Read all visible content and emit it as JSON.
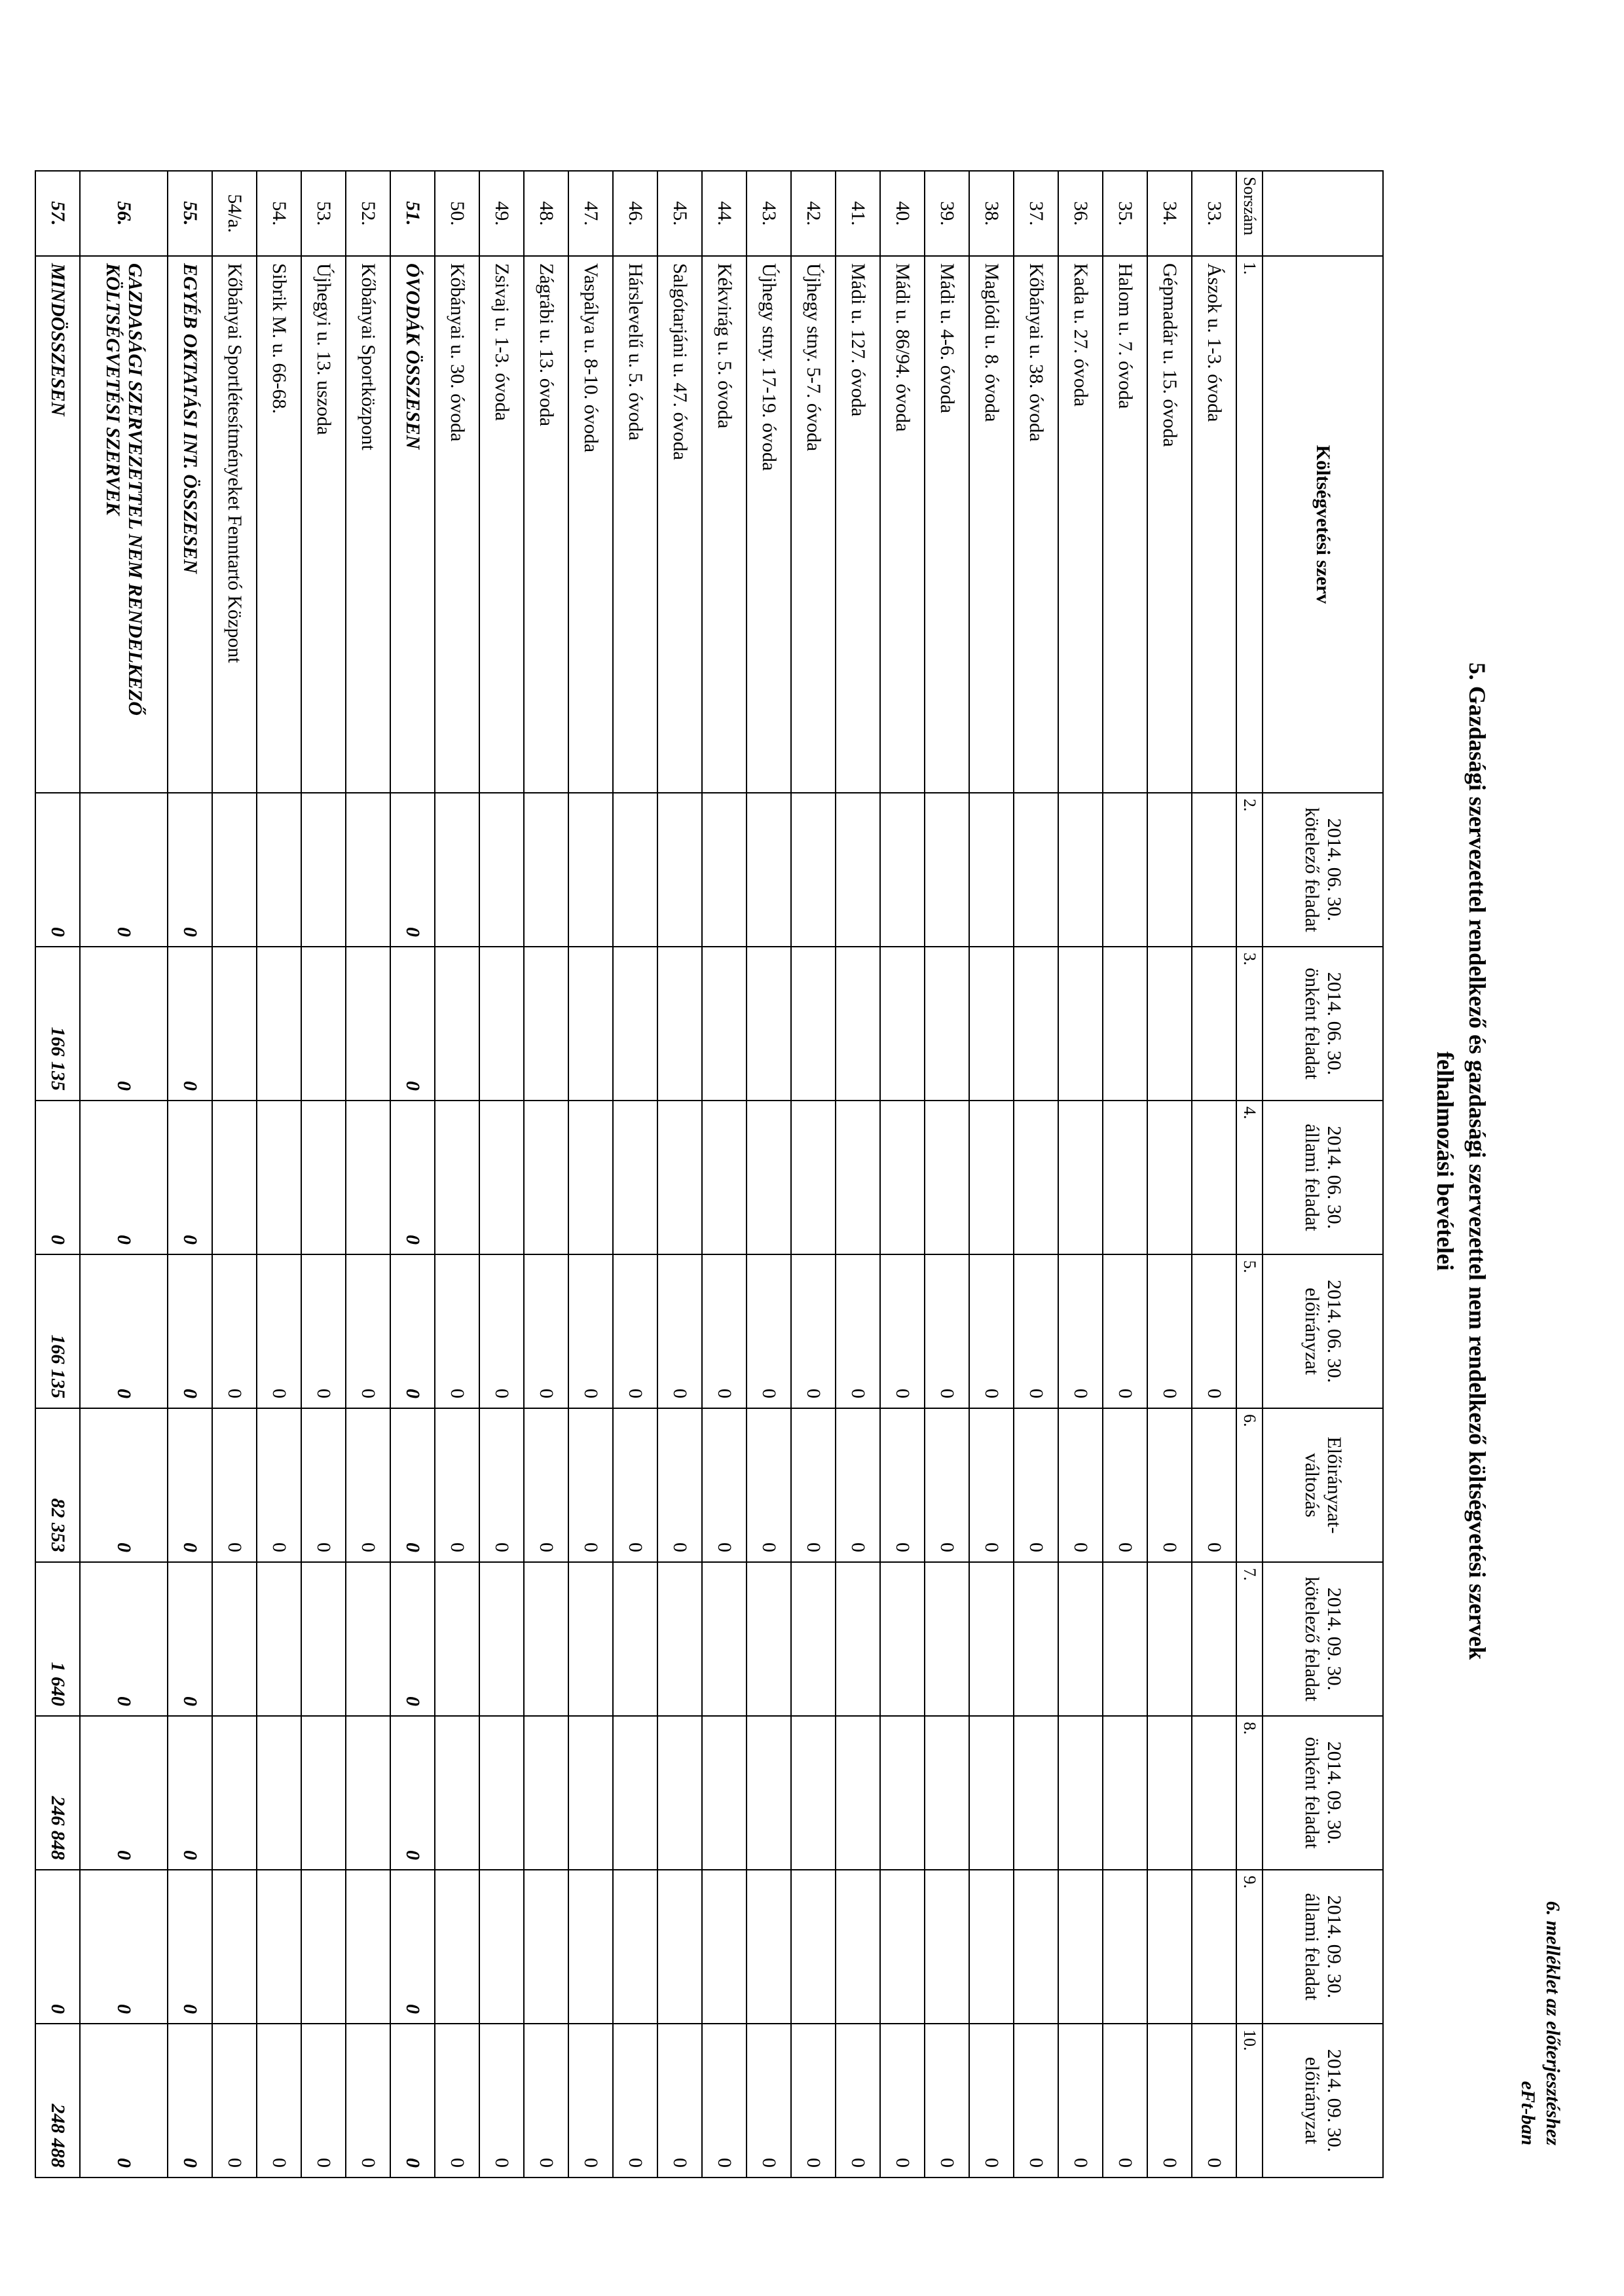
{
  "annex": {
    "line1": "6. melléklet az előterjesztéshez",
    "line2": "eFt-ban"
  },
  "title": {
    "line1": "5. Gazdasági szervezettel rendelkező és gazdasági szervezettel nem rendelkező költségvetési szervek",
    "line2": "felhalmozási bevételei"
  },
  "colnums": [
    "Sorszám",
    "1.",
    "2.",
    "3.",
    "4.",
    "5.",
    "6.",
    "7.",
    "8.",
    "9.",
    "10."
  ],
  "headers": {
    "name": "Költségvetési szerv",
    "c2": "2014. 06. 30. kötelező feladat",
    "c3": "2014. 06. 30. önként feladat",
    "c4": "2014. 06. 30. állami feladat",
    "c5": "2014. 06. 30. előirányzat",
    "c6": "Előirányzat-változás",
    "c7": "2014. 09. 30. kötelező feladat",
    "c8": "2014. 09. 30. önként feladat",
    "c9": "2014. 09. 30. állami feladat",
    "c10": "2014. 09. 30. előirányzat"
  },
  "rows": [
    {
      "sor": "33.",
      "name": "Ászok u. 1-3. óvoda",
      "c2": "",
      "c3": "",
      "c4": "",
      "c5": "0",
      "c6": "0",
      "c7": "",
      "c8": "",
      "c9": "",
      "c10": "0",
      "style": ""
    },
    {
      "sor": "34.",
      "name": "Gépmadár u. 15. óvoda",
      "c2": "",
      "c3": "",
      "c4": "",
      "c5": "0",
      "c6": "0",
      "c7": "",
      "c8": "",
      "c9": "",
      "c10": "0",
      "style": ""
    },
    {
      "sor": "35.",
      "name": "Halom u. 7. óvoda",
      "c2": "",
      "c3": "",
      "c4": "",
      "c5": "0",
      "c6": "0",
      "c7": "",
      "c8": "",
      "c9": "",
      "c10": "0",
      "style": ""
    },
    {
      "sor": "36.",
      "name": "Kada u. 27. óvoda",
      "c2": "",
      "c3": "",
      "c4": "",
      "c5": "0",
      "c6": "0",
      "c7": "",
      "c8": "",
      "c9": "",
      "c10": "0",
      "style": ""
    },
    {
      "sor": "37.",
      "name": "Kőbányai u. 38. óvoda",
      "c2": "",
      "c3": "",
      "c4": "",
      "c5": "0",
      "c6": "0",
      "c7": "",
      "c8": "",
      "c9": "",
      "c10": "0",
      "style": ""
    },
    {
      "sor": "38.",
      "name": "Maglódi u. 8. óvoda",
      "c2": "",
      "c3": "",
      "c4": "",
      "c5": "0",
      "c6": "0",
      "c7": "",
      "c8": "",
      "c9": "",
      "c10": "0",
      "style": ""
    },
    {
      "sor": "39.",
      "name": "Mádi u. 4-6. óvoda",
      "c2": "",
      "c3": "",
      "c4": "",
      "c5": "0",
      "c6": "0",
      "c7": "",
      "c8": "",
      "c9": "",
      "c10": "0",
      "style": ""
    },
    {
      "sor": "40.",
      "name": "Mádi u. 86/94. óvoda",
      "c2": "",
      "c3": "",
      "c4": "",
      "c5": "0",
      "c6": "0",
      "c7": "",
      "c8": "",
      "c9": "",
      "c10": "0",
      "style": ""
    },
    {
      "sor": "41.",
      "name": "Mádi u. 127. óvoda",
      "c2": "",
      "c3": "",
      "c4": "",
      "c5": "0",
      "c6": "0",
      "c7": "",
      "c8": "",
      "c9": "",
      "c10": "0",
      "style": ""
    },
    {
      "sor": "42.",
      "name": "Újhegy stny. 5-7. óvoda",
      "c2": "",
      "c3": "",
      "c4": "",
      "c5": "0",
      "c6": "0",
      "c7": "",
      "c8": "",
      "c9": "",
      "c10": "0",
      "style": ""
    },
    {
      "sor": "43.",
      "name": "Újhegy stny. 17-19. óvoda",
      "c2": "",
      "c3": "",
      "c4": "",
      "c5": "0",
      "c6": "0",
      "c7": "",
      "c8": "",
      "c9": "",
      "c10": "0",
      "style": ""
    },
    {
      "sor": "44.",
      "name": "Kékvirág u. 5. óvoda",
      "c2": "",
      "c3": "",
      "c4": "",
      "c5": "0",
      "c6": "0",
      "c7": "",
      "c8": "",
      "c9": "",
      "c10": "0",
      "style": ""
    },
    {
      "sor": "45.",
      "name": "Salgótarjáni u. 47. óvoda",
      "c2": "",
      "c3": "",
      "c4": "",
      "c5": "0",
      "c6": "0",
      "c7": "",
      "c8": "",
      "c9": "",
      "c10": "0",
      "style": ""
    },
    {
      "sor": "46.",
      "name": "Hárslevelű u. 5. óvoda",
      "c2": "",
      "c3": "",
      "c4": "",
      "c5": "0",
      "c6": "0",
      "c7": "",
      "c8": "",
      "c9": "",
      "c10": "0",
      "style": ""
    },
    {
      "sor": "47.",
      "name": "Vaspálya u. 8-10. óvoda",
      "c2": "",
      "c3": "",
      "c4": "",
      "c5": "0",
      "c6": "0",
      "c7": "",
      "c8": "",
      "c9": "",
      "c10": "0",
      "style": ""
    },
    {
      "sor": "48.",
      "name": "Zágrábi u. 13. óvoda",
      "c2": "",
      "c3": "",
      "c4": "",
      "c5": "0",
      "c6": "0",
      "c7": "",
      "c8": "",
      "c9": "",
      "c10": "0",
      "style": ""
    },
    {
      "sor": "49.",
      "name": "Zsivaj u. 1-3. óvoda",
      "c2": "",
      "c3": "",
      "c4": "",
      "c5": "0",
      "c6": "0",
      "c7": "",
      "c8": "",
      "c9": "",
      "c10": "0",
      "style": ""
    },
    {
      "sor": "50.",
      "name": "Kőbányai u. 30. óvoda",
      "c2": "",
      "c3": "",
      "c4": "",
      "c5": "0",
      "c6": "0",
      "c7": "",
      "c8": "",
      "c9": "",
      "c10": "0",
      "style": ""
    },
    {
      "sor": "51.",
      "name": "ÓVODÁK ÖSSZESEN",
      "c2": "0",
      "c3": "0",
      "c4": "0",
      "c5": "0",
      "c6": "0",
      "c7": "0",
      "c8": "0",
      "c9": "0",
      "c10": "0",
      "style": "bolditalic"
    },
    {
      "sor": "52.",
      "name": "Kőbányai Sportközpont",
      "c2": "",
      "c3": "",
      "c4": "",
      "c5": "0",
      "c6": "0",
      "c7": "",
      "c8": "",
      "c9": "",
      "c10": "0",
      "style": ""
    },
    {
      "sor": "53.",
      "name": "Újhegyi u. 13. uszoda",
      "c2": "",
      "c3": "",
      "c4": "",
      "c5": "0",
      "c6": "0",
      "c7": "",
      "c8": "",
      "c9": "",
      "c10": "0",
      "style": ""
    },
    {
      "sor": "54.",
      "name": "Sibrik M. u. 66-68.",
      "c2": "",
      "c3": "",
      "c4": "",
      "c5": "0",
      "c6": "0",
      "c7": "",
      "c8": "",
      "c9": "",
      "c10": "0",
      "style": ""
    },
    {
      "sor": "54/a.",
      "name": "Kőbányai Sportlétesítményeket Fenntartó Központ",
      "c2": "",
      "c3": "",
      "c4": "",
      "c5": "0",
      "c6": "0",
      "c7": "",
      "c8": "",
      "c9": "",
      "c10": "0",
      "style": ""
    },
    {
      "sor": "55.",
      "name": "EGYÉB OKTATÁSI INT. ÖSSZESEN",
      "c2": "0",
      "c3": "0",
      "c4": "0",
      "c5": "0",
      "c6": "0",
      "c7": "0",
      "c8": "0",
      "c9": "0",
      "c10": "0",
      "style": "bolditalic"
    },
    {
      "sor": "56.",
      "name": "GAZDASÁGI SZERVEZETTEL NEM RENDELKEZŐ KÖLTSÉGVETÉSI SZERVEK",
      "c2": "0",
      "c3": "0",
      "c4": "0",
      "c5": "0",
      "c6": "0",
      "c7": "0",
      "c8": "0",
      "c9": "0",
      "c10": "0",
      "style": "bolditalic tall"
    },
    {
      "sor": "57.",
      "name": "MINDÖSSZESEN",
      "c2": "0",
      "c3": "166 135",
      "c4": "0",
      "c5": "166 135",
      "c6": "82 353",
      "c7": "1 640",
      "c8": "246 848",
      "c9": "0",
      "c10": "248 488",
      "style": "bolditalic"
    }
  ]
}
